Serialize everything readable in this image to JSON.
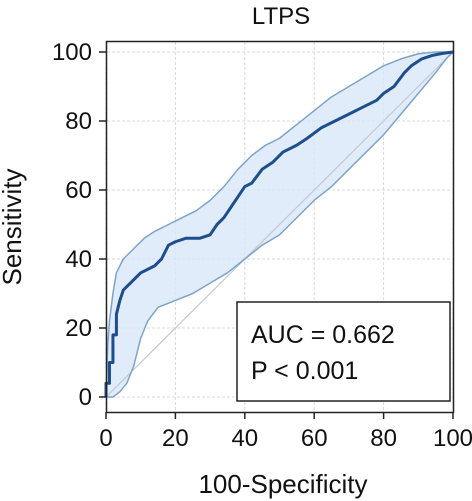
{
  "chart_data": {
    "type": "line",
    "title": "LTPS",
    "xlabel": "100-Specificity",
    "ylabel": "Sensitivity",
    "xlim": [
      0,
      100
    ],
    "ylim": [
      0,
      100
    ],
    "xticks": [
      "0",
      "20",
      "40",
      "60",
      "80",
      "100"
    ],
    "yticks": [
      "0",
      "20",
      "40",
      "60",
      "80",
      "100"
    ],
    "grid": true,
    "annotations": [
      "AUC = 0.662",
      "P < 0.001"
    ],
    "series": [
      {
        "role": "roc",
        "color": "#1f4e8c",
        "x": [
          0,
          0,
          1,
          1,
          2,
          2,
          3,
          3,
          4,
          5,
          7,
          9,
          10,
          12,
          14,
          16,
          18,
          20,
          23,
          27,
          30,
          32,
          34,
          36,
          38,
          40,
          42,
          45,
          48,
          51,
          55,
          58,
          62,
          66,
          70,
          74,
          78,
          80,
          83,
          86,
          88,
          91,
          94,
          97,
          100
        ],
        "y": [
          0,
          4,
          4,
          10,
          10,
          18,
          18,
          24,
          28,
          31,
          33,
          35,
          36,
          37,
          38,
          40,
          44,
          45,
          46,
          46,
          47,
          50,
          52,
          55,
          58,
          61,
          62,
          66,
          68,
          71,
          73,
          75,
          78,
          80,
          82,
          84,
          86,
          88,
          90,
          94,
          96,
          98,
          99,
          99.6,
          100
        ]
      },
      {
        "role": "ci-upper",
        "color": "#7ea3c9",
        "x": [
          0,
          0.5,
          1,
          2,
          3,
          5,
          8,
          11,
          14,
          18,
          22,
          26,
          30,
          34,
          38,
          42,
          46,
          50,
          55,
          60,
          65,
          70,
          75,
          80,
          85,
          90,
          95,
          100
        ],
        "y": [
          0,
          15,
          22,
          30,
          36,
          40,
          43,
          46,
          48,
          50,
          52,
          54,
          57,
          61,
          66,
          70,
          73,
          75,
          79,
          83,
          87,
          90,
          93,
          96,
          98,
          99.5,
          100,
          100
        ]
      },
      {
        "role": "ci-lower",
        "color": "#7ea3c9",
        "x": [
          0,
          2,
          4,
          6,
          8,
          10,
          12,
          15,
          20,
          25,
          30,
          35,
          40,
          45,
          50,
          55,
          60,
          65,
          70,
          75,
          80,
          85,
          90,
          95,
          98,
          100
        ],
        "y": [
          0,
          0,
          1.5,
          4,
          9,
          17,
          22,
          26,
          28,
          30,
          33,
          36,
          40,
          44,
          47,
          52,
          57,
          61,
          66,
          71,
          76,
          82,
          88,
          94,
          98,
          100
        ]
      },
      {
        "role": "reference-diagonal",
        "color": "#c4c7d4",
        "x": [
          0,
          100
        ],
        "y": [
          0,
          100
        ]
      }
    ]
  }
}
